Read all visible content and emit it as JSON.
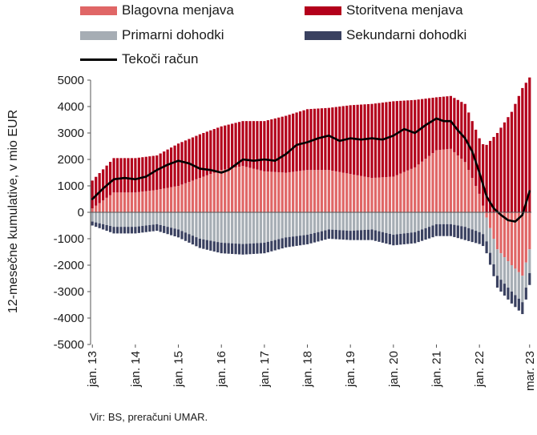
{
  "source_note": "Vir: BS, preračuni UMAR.",
  "chart_data": {
    "type": "bar",
    "stacked": true,
    "ylabel": "12-mesečne kumulative, v mio EUR",
    "ylim": [
      -5000,
      5000
    ],
    "yticks": [
      5000,
      4000,
      3000,
      2000,
      1000,
      0,
      -1000,
      -2000,
      -3000,
      -4000,
      -5000
    ],
    "ytick_labels": [
      "5000",
      "4000",
      "3000",
      "2000",
      "1000",
      "0",
      "-1000",
      "-2000",
      "-3000",
      "-4000",
      "-5000"
    ],
    "xtick_labels": [
      "jan. 13",
      "jan. 14",
      "jan. 15",
      "jan. 16",
      "jan. 17",
      "jan. 18",
      "jan. 19",
      "jan. 20",
      "jan. 21",
      "jan. 22",
      "mar. 23"
    ],
    "xtick_months": [
      0,
      12,
      24,
      36,
      48,
      60,
      72,
      84,
      96,
      108,
      122
    ],
    "months": 123,
    "legend_position": "top",
    "grid": false,
    "series": [
      {
        "name": "Blagovna menjava",
        "kind": "bar",
        "color": "#e06666",
        "anchors": [
          [
            0,
            150
          ],
          [
            6,
            750
          ],
          [
            12,
            750
          ],
          [
            18,
            850
          ],
          [
            24,
            1000
          ],
          [
            30,
            1300
          ],
          [
            36,
            1600
          ],
          [
            42,
            1750
          ],
          [
            48,
            1550
          ],
          [
            54,
            1500
          ],
          [
            60,
            1600
          ],
          [
            66,
            1600
          ],
          [
            72,
            1450
          ],
          [
            78,
            1300
          ],
          [
            84,
            1350
          ],
          [
            90,
            1700
          ],
          [
            96,
            2350
          ],
          [
            100,
            2400
          ],
          [
            104,
            1900
          ],
          [
            108,
            700
          ],
          [
            110,
            -200
          ],
          [
            113,
            -1400
          ],
          [
            117,
            -2000
          ],
          [
            120,
            -2400
          ],
          [
            122,
            -1400
          ]
        ]
      },
      {
        "name": "Storitvena menjava",
        "kind": "bar",
        "color": "#b3001b",
        "anchors": [
          [
            0,
            1050
          ],
          [
            6,
            1300
          ],
          [
            12,
            1300
          ],
          [
            18,
            1300
          ],
          [
            24,
            1600
          ],
          [
            30,
            1650
          ],
          [
            36,
            1650
          ],
          [
            42,
            1700
          ],
          [
            48,
            1900
          ],
          [
            54,
            2150
          ],
          [
            60,
            2300
          ],
          [
            66,
            2350
          ],
          [
            72,
            2600
          ],
          [
            78,
            2800
          ],
          [
            84,
            2850
          ],
          [
            90,
            2550
          ],
          [
            96,
            2000
          ],
          [
            100,
            2000
          ],
          [
            104,
            2200
          ],
          [
            108,
            2100
          ],
          [
            110,
            2550
          ],
          [
            113,
            3000
          ],
          [
            117,
            3800
          ],
          [
            120,
            4700
          ],
          [
            122,
            5100
          ]
        ]
      },
      {
        "name": "Primarni dohodki",
        "kind": "bar",
        "color": "#a6adb4",
        "anchors": [
          [
            0,
            -350
          ],
          [
            6,
            -550
          ],
          [
            12,
            -550
          ],
          [
            18,
            -450
          ],
          [
            24,
            -650
          ],
          [
            30,
            -1000
          ],
          [
            36,
            -1150
          ],
          [
            42,
            -1200
          ],
          [
            48,
            -1150
          ],
          [
            54,
            -950
          ],
          [
            60,
            -850
          ],
          [
            66,
            -650
          ],
          [
            72,
            -700
          ],
          [
            78,
            -650
          ],
          [
            84,
            -850
          ],
          [
            90,
            -750
          ],
          [
            96,
            -450
          ],
          [
            100,
            -450
          ],
          [
            104,
            -550
          ],
          [
            108,
            -750
          ],
          [
            110,
            -900
          ],
          [
            113,
            -1000
          ],
          [
            117,
            -1000
          ],
          [
            120,
            -1000
          ],
          [
            122,
            -900
          ]
        ]
      },
      {
        "name": "Sekundarni dohodki",
        "kind": "bar",
        "color": "#3a4160",
        "anchors": [
          [
            0,
            -150
          ],
          [
            6,
            -250
          ],
          [
            12,
            -250
          ],
          [
            18,
            -250
          ],
          [
            24,
            -300
          ],
          [
            30,
            -350
          ],
          [
            36,
            -400
          ],
          [
            42,
            -400
          ],
          [
            48,
            -400
          ],
          [
            54,
            -380
          ],
          [
            60,
            -360
          ],
          [
            66,
            -350
          ],
          [
            72,
            -350
          ],
          [
            78,
            -400
          ],
          [
            84,
            -400
          ],
          [
            90,
            -420
          ],
          [
            96,
            -450
          ],
          [
            100,
            -450
          ],
          [
            104,
            -500
          ],
          [
            108,
            -450
          ],
          [
            110,
            -450
          ],
          [
            113,
            -450
          ],
          [
            117,
            -450
          ],
          [
            120,
            -450
          ],
          [
            122,
            -450
          ]
        ]
      },
      {
        "name": "Tekoči račun",
        "kind": "line",
        "color": "#000000",
        "anchors": [
          [
            0,
            500
          ],
          [
            3,
            900
          ],
          [
            6,
            1250
          ],
          [
            9,
            1300
          ],
          [
            12,
            1250
          ],
          [
            15,
            1350
          ],
          [
            18,
            1600
          ],
          [
            21,
            1800
          ],
          [
            24,
            1950
          ],
          [
            27,
            1850
          ],
          [
            30,
            1650
          ],
          [
            33,
            1600
          ],
          [
            36,
            1500
          ],
          [
            38,
            1600
          ],
          [
            42,
            2000
          ],
          [
            45,
            1950
          ],
          [
            48,
            2000
          ],
          [
            51,
            1950
          ],
          [
            54,
            2200
          ],
          [
            57,
            2550
          ],
          [
            60,
            2650
          ],
          [
            63,
            2800
          ],
          [
            66,
            2900
          ],
          [
            69,
            2700
          ],
          [
            72,
            2800
          ],
          [
            75,
            2750
          ],
          [
            78,
            2800
          ],
          [
            81,
            2750
          ],
          [
            84,
            2900
          ],
          [
            87,
            3150
          ],
          [
            90,
            3000
          ],
          [
            93,
            3300
          ],
          [
            96,
            3550
          ],
          [
            98,
            3450
          ],
          [
            100,
            3450
          ],
          [
            102,
            3100
          ],
          [
            104,
            2800
          ],
          [
            106,
            2300
          ],
          [
            108,
            1500
          ],
          [
            110,
            600
          ],
          [
            112,
            150
          ],
          [
            114,
            -100
          ],
          [
            116,
            -300
          ],
          [
            118,
            -350
          ],
          [
            120,
            -100
          ],
          [
            122,
            800
          ]
        ]
      }
    ]
  }
}
